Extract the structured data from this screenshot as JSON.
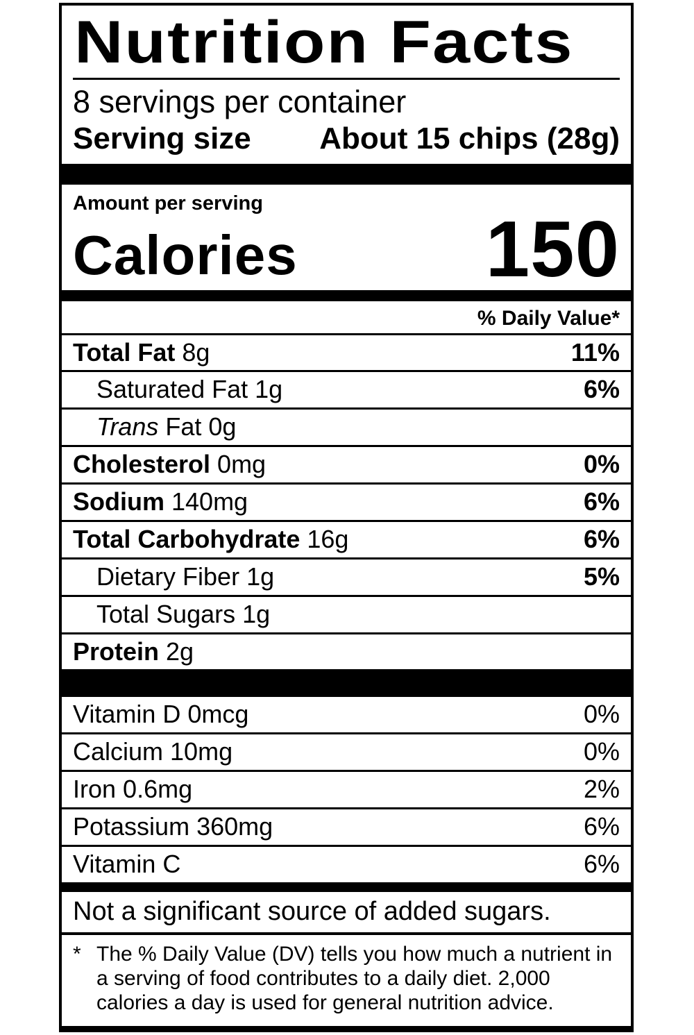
{
  "label": {
    "title": "Nutrition Facts",
    "servings_per_container": "8 servings per container",
    "serving_size_label": "Serving size",
    "serving_size_value": "About 15 chips (28g)",
    "amount_per_serving": "Amount per serving",
    "calories_label": "Calories",
    "calories_value": "150",
    "daily_value_header": "% Daily Value*",
    "nutrients": [
      {
        "name": "Total Fat",
        "amount": "8g",
        "dv": "11%"
      },
      {
        "name": "Saturated Fat",
        "amount": "1g",
        "dv": "6%"
      },
      {
        "name_italic": "Trans",
        "name": "Fat",
        "amount": "0g",
        "dv": ""
      },
      {
        "name": "Cholesterol",
        "amount": "0mg",
        "dv": "0%"
      },
      {
        "name": "Sodium",
        "amount": "140mg",
        "dv": "6%"
      },
      {
        "name": "Total Carbohydrate",
        "amount": "16g",
        "dv": "6%"
      },
      {
        "name": "Dietary Fiber",
        "amount": "1g",
        "dv": "5%"
      },
      {
        "name": "Total Sugars",
        "amount": "1g",
        "dv": ""
      },
      {
        "name": "Protein",
        "amount": "2g",
        "dv": ""
      }
    ],
    "micronutrients": [
      {
        "name": "Vitamin D",
        "amount": "0mcg",
        "dv": "0%"
      },
      {
        "name": "Calcium",
        "amount": "10mg",
        "dv": "0%"
      },
      {
        "name": "Iron",
        "amount": "0.6mg",
        "dv": "2%"
      },
      {
        "name": "Potassium",
        "amount": "360mg",
        "dv": "6%"
      },
      {
        "name": "Vitamin C",
        "amount": "",
        "dv": "6%"
      }
    ],
    "note": "Not a significant source of added sugars.",
    "footnote_marker": "*",
    "footnote": "The % Daily Value (DV) tells you how much a nutrient in a serving of food contributes to a daily diet. 2,000 calories a day is used for general nutrition advice.",
    "colors": {
      "ink": "#000000",
      "paper": "#ffffff"
    }
  }
}
